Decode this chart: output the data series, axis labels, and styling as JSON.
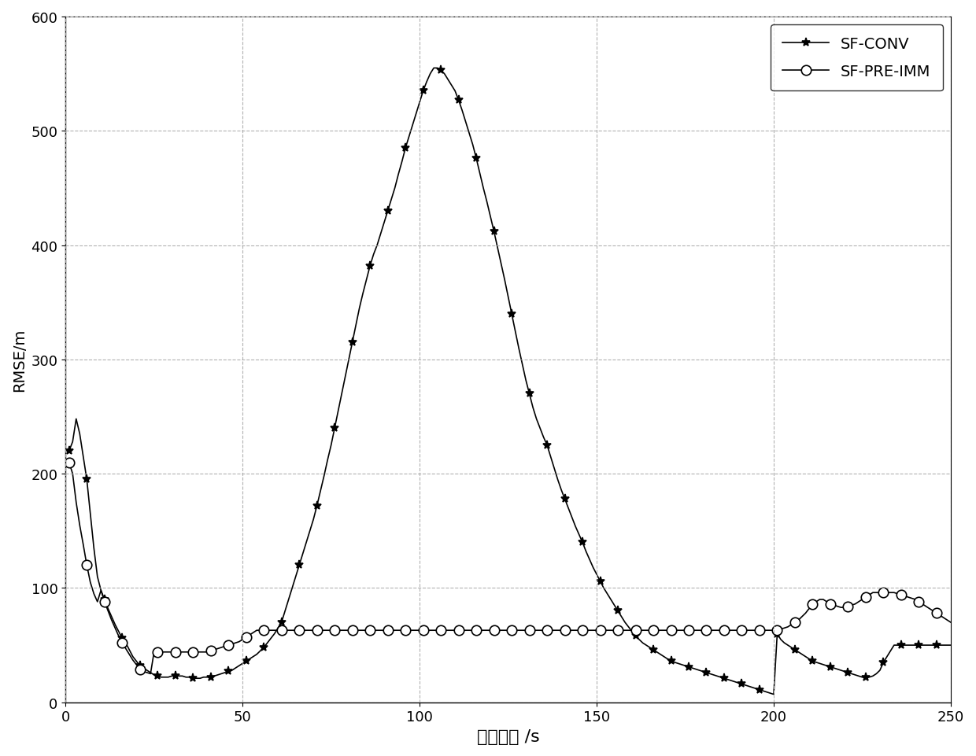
{
  "sf_conv_x": [
    1,
    2,
    3,
    4,
    5,
    6,
    7,
    8,
    9,
    10,
    11,
    12,
    13,
    14,
    15,
    16,
    17,
    18,
    19,
    20,
    21,
    22,
    23,
    24,
    25,
    26,
    27,
    28,
    29,
    30,
    31,
    32,
    33,
    34,
    35,
    36,
    37,
    38,
    39,
    40,
    41,
    42,
    43,
    44,
    45,
    46,
    47,
    48,
    49,
    50,
    51,
    52,
    53,
    54,
    55,
    56,
    57,
    58,
    59,
    60,
    61,
    62,
    63,
    64,
    65,
    66,
    67,
    68,
    69,
    70,
    71,
    72,
    73,
    74,
    75,
    76,
    77,
    78,
    79,
    80,
    81,
    82,
    83,
    84,
    85,
    86,
    87,
    88,
    89,
    90,
    91,
    92,
    93,
    94,
    95,
    96,
    97,
    98,
    99,
    100,
    101,
    102,
    103,
    104,
    105,
    106,
    107,
    108,
    109,
    110,
    111,
    112,
    113,
    114,
    115,
    116,
    117,
    118,
    119,
    120,
    121,
    122,
    123,
    124,
    125,
    126,
    127,
    128,
    129,
    130,
    131,
    132,
    133,
    134,
    135,
    136,
    137,
    138,
    139,
    140,
    141,
    142,
    143,
    144,
    145,
    146,
    147,
    148,
    149,
    150,
    151,
    152,
    153,
    154,
    155,
    156,
    157,
    158,
    159,
    160,
    161,
    162,
    163,
    164,
    165,
    166,
    167,
    168,
    169,
    170,
    171,
    172,
    173,
    174,
    175,
    176,
    177,
    178,
    179,
    180,
    181,
    182,
    183,
    184,
    185,
    186,
    187,
    188,
    189,
    190,
    191,
    192,
    193,
    194,
    195,
    196,
    197,
    198,
    199,
    200,
    201,
    202,
    203,
    204,
    205,
    206,
    207,
    208,
    209,
    210,
    211,
    212,
    213,
    214,
    215,
    216,
    217,
    218,
    219,
    220,
    221,
    222,
    223,
    224,
    225,
    226,
    227,
    228,
    229,
    230,
    231,
    232,
    233,
    234,
    235,
    236,
    237,
    238,
    239,
    240,
    241,
    242,
    243,
    244,
    245,
    246,
    247,
    248,
    249,
    250
  ],
  "sf_conv_y": [
    220,
    228,
    248,
    235,
    215,
    195,
    165,
    135,
    110,
    98,
    90,
    82,
    75,
    68,
    62,
    56,
    52,
    46,
    40,
    36,
    32,
    30,
    28,
    26,
    24,
    23,
    22,
    22,
    22,
    23,
    23,
    23,
    23,
    22,
    22,
    21,
    21,
    21,
    22,
    22,
    22,
    23,
    24,
    25,
    26,
    27,
    28,
    30,
    32,
    34,
    36,
    38,
    40,
    42,
    45,
    48,
    52,
    56,
    60,
    65,
    70,
    80,
    90,
    100,
    110,
    120,
    130,
    140,
    150,
    160,
    172,
    185,
    198,
    212,
    225,
    240,
    255,
    270,
    285,
    300,
    315,
    330,
    345,
    358,
    370,
    382,
    392,
    400,
    410,
    420,
    430,
    440,
    450,
    462,
    473,
    485,
    495,
    505,
    515,
    525,
    535,
    543,
    550,
    555,
    555,
    553,
    550,
    545,
    540,
    535,
    527,
    518,
    508,
    498,
    488,
    476,
    463,
    450,
    438,
    425,
    412,
    398,
    384,
    370,
    355,
    340,
    325,
    310,
    296,
    282,
    270,
    258,
    248,
    240,
    232,
    225,
    215,
    205,
    195,
    186,
    178,
    170,
    162,
    154,
    147,
    140,
    132,
    125,
    118,
    112,
    106,
    100,
    95,
    90,
    85,
    80,
    75,
    70,
    66,
    62,
    58,
    55,
    52,
    50,
    48,
    46,
    44,
    42,
    40,
    38,
    36,
    35,
    34,
    33,
    32,
    31,
    30,
    29,
    28,
    27,
    26,
    25,
    24,
    23,
    22,
    21,
    20,
    19,
    18,
    17,
    16,
    15,
    14,
    13,
    12,
    11,
    10,
    9,
    8,
    7,
    60,
    55,
    52,
    50,
    48,
    46,
    44,
    42,
    40,
    38,
    36,
    35,
    34,
    33,
    32,
    31,
    30,
    29,
    28,
    27,
    26,
    25,
    24,
    23,
    22,
    22,
    22,
    23,
    25,
    28,
    35,
    40,
    45,
    50,
    50,
    50,
    50,
    50,
    50,
    50,
    50,
    50,
    50,
    50,
    50,
    50,
    50,
    50,
    50,
    50
  ],
  "sf_pre_imm_x": [
    1,
    2,
    3,
    4,
    5,
    6,
    7,
    8,
    9,
    10,
    11,
    12,
    13,
    14,
    15,
    16,
    17,
    18,
    19,
    20,
    21,
    22,
    23,
    24,
    25,
    26,
    27,
    28,
    29,
    30,
    31,
    32,
    33,
    34,
    35,
    36,
    37,
    38,
    39,
    40,
    41,
    42,
    43,
    44,
    45,
    46,
    47,
    48,
    49,
    50,
    51,
    52,
    53,
    54,
    55,
    56,
    57,
    58,
    59,
    60,
    61,
    62,
    63,
    64,
    65,
    66,
    67,
    68,
    69,
    70,
    71,
    72,
    73,
    74,
    75,
    76,
    77,
    78,
    79,
    80,
    81,
    82,
    83,
    84,
    85,
    86,
    87,
    88,
    89,
    90,
    91,
    92,
    93,
    94,
    95,
    96,
    97,
    98,
    99,
    100,
    101,
    102,
    103,
    104,
    105,
    106,
    107,
    108,
    109,
    110,
    111,
    112,
    113,
    114,
    115,
    116,
    117,
    118,
    119,
    120,
    121,
    122,
    123,
    124,
    125,
    126,
    127,
    128,
    129,
    130,
    131,
    132,
    133,
    134,
    135,
    136,
    137,
    138,
    139,
    140,
    141,
    142,
    143,
    144,
    145,
    146,
    147,
    148,
    149,
    150,
    151,
    152,
    153,
    154,
    155,
    156,
    157,
    158,
    159,
    160,
    161,
    162,
    163,
    164,
    165,
    166,
    167,
    168,
    169,
    170,
    171,
    172,
    173,
    174,
    175,
    176,
    177,
    178,
    179,
    180,
    181,
    182,
    183,
    184,
    185,
    186,
    187,
    188,
    189,
    190,
    191,
    192,
    193,
    194,
    195,
    196,
    197,
    198,
    199,
    200,
    201,
    202,
    203,
    204,
    205,
    206,
    207,
    208,
    209,
    210,
    211,
    212,
    213,
    214,
    215,
    216,
    217,
    218,
    219,
    220,
    221,
    222,
    223,
    224,
    225,
    226,
    227,
    228,
    229,
    230,
    231,
    232,
    233,
    234,
    235,
    236,
    237,
    238,
    239,
    240,
    241,
    242,
    243,
    244,
    245,
    246,
    247,
    248,
    249,
    250
  ],
  "sf_pre_imm_y": [
    210,
    200,
    175,
    155,
    138,
    120,
    105,
    95,
    88,
    98,
    88,
    80,
    72,
    65,
    58,
    52,
    47,
    42,
    37,
    33,
    29,
    27,
    26,
    25,
    44,
    44,
    44,
    44,
    44,
    44,
    44,
    44,
    44,
    44,
    44,
    44,
    44,
    44,
    44,
    44,
    45,
    46,
    47,
    48,
    49,
    50,
    51,
    52,
    53,
    55,
    57,
    59,
    61,
    63,
    63,
    63,
    63,
    63,
    63,
    63,
    63,
    63,
    63,
    63,
    63,
    63,
    63,
    63,
    63,
    63,
    63,
    63,
    63,
    63,
    63,
    63,
    63,
    63,
    63,
    63,
    63,
    63,
    63,
    63,
    63,
    63,
    63,
    63,
    63,
    63,
    63,
    63,
    63,
    63,
    63,
    63,
    63,
    63,
    63,
    63,
    63,
    63,
    63,
    63,
    63,
    63,
    63,
    63,
    63,
    63,
    63,
    63,
    63,
    63,
    63,
    63,
    63,
    63,
    63,
    63,
    63,
    63,
    63,
    63,
    63,
    63,
    63,
    63,
    63,
    63,
    63,
    63,
    63,
    63,
    63,
    63,
    63,
    63,
    63,
    63,
    63,
    63,
    63,
    63,
    63,
    63,
    63,
    63,
    63,
    63,
    63,
    63,
    63,
    63,
    63,
    63,
    63,
    63,
    63,
    63,
    63,
    63,
    63,
    63,
    63,
    63,
    63,
    63,
    63,
    63,
    63,
    63,
    63,
    63,
    63,
    63,
    63,
    63,
    63,
    63,
    63,
    63,
    63,
    63,
    63,
    63,
    63,
    63,
    63,
    63,
    63,
    63,
    63,
    63,
    63,
    63,
    63,
    63,
    63,
    63,
    63,
    64,
    65,
    66,
    68,
    70,
    72,
    75,
    78,
    82,
    86,
    88,
    90,
    90,
    88,
    86,
    85,
    84,
    83,
    83,
    84,
    85,
    86,
    88,
    90,
    92,
    94,
    96,
    96,
    96,
    96,
    96,
    96,
    96,
    95,
    94,
    93,
    92,
    91,
    90,
    88,
    86,
    84,
    82,
    80,
    78,
    76,
    74,
    72,
    70
  ],
  "ylabel": "RMSE/m",
  "xlabel": "采样时间 /s",
  "xlim": [
    0,
    250
  ],
  "ylim": [
    0,
    600
  ],
  "xticks": [
    0,
    50,
    100,
    150,
    200,
    250
  ],
  "yticks": [
    0,
    100,
    200,
    300,
    400,
    500,
    600
  ],
  "grid_color": "#aaaaaa",
  "line_color": "#000000",
  "legend_labels": [
    "SF-CONV",
    "SF-PRE-IMM"
  ],
  "marker_conv": "*",
  "marker_pre": "o",
  "marker_interval_conv": 5,
  "marker_interval_pre": 5,
  "figsize": [
    12.4,
    9.62
  ],
  "dpi": 100
}
